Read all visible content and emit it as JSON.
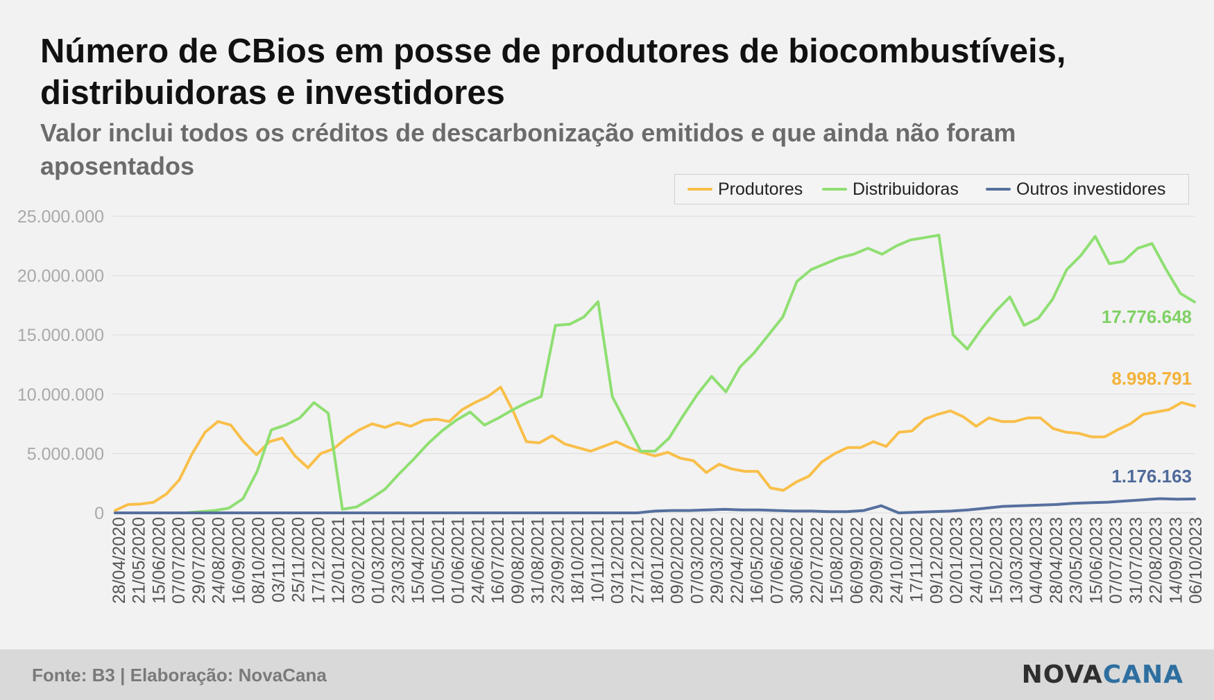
{
  "title": "Número de CBios em posse de produtores de biocombustíveis, distribuidoras e investidores",
  "subtitle": "Valor inclui todos os créditos de descarbonização emitidos e que ainda não foram aposentados",
  "source": "Fonte: B3 | Elaboração: NovaCana",
  "logo": {
    "part1": "NOVA",
    "part2": "CANA"
  },
  "colors": {
    "produtores": "#f9bf4a",
    "distribuidoras": "#8fdf72",
    "outros": "#56709e"
  },
  "chart_data": {
    "type": "line",
    "ylim": [
      0,
      25000000
    ],
    "yticks": [
      "0",
      "5.000.000",
      "10.000.000",
      "15.000.000",
      "20.000.000",
      "25.000.000"
    ],
    "ytick_values": [
      0,
      5000000,
      10000000,
      15000000,
      20000000,
      25000000
    ],
    "xticks": [
      "28/04/2020",
      "21/05/2020",
      "15/06/2020",
      "07/07/2020",
      "29/07/2020",
      "24/08/2020",
      "16/09/2020",
      "08/10/2020",
      "03/11/2020",
      "25/11/2020",
      "17/12/2020",
      "12/01/2021",
      "03/02/2021",
      "01/03/2021",
      "23/03/2021",
      "15/04/2021",
      "10/05/2021",
      "01/06/2021",
      "24/06/2021",
      "16/07/2021",
      "09/08/2021",
      "31/08/2021",
      "23/09/2021",
      "18/10/2021",
      "10/11/2021",
      "03/12/2021",
      "27/12/2021",
      "18/01/2022",
      "09/02/2022",
      "07/03/2022",
      "29/03/2022",
      "22/04/2022",
      "16/05/2022",
      "07/06/2022",
      "30/06/2022",
      "22/07/2022",
      "15/08/2022",
      "06/09/2022",
      "29/09/2022",
      "24/10/2022",
      "17/11/2022",
      "09/12/2022",
      "02/01/2023",
      "24/01/2023",
      "15/02/2023",
      "13/03/2023",
      "04/04/2023",
      "28/04/2023",
      "23/05/2023",
      "15/06/2023",
      "07/07/2023",
      "31/07/2023",
      "22/08/2023",
      "14/09/2023",
      "06/10/2023"
    ],
    "series": [
      {
        "name": "Produtores",
        "key": "produtores",
        "end_label": "8.998.791",
        "values": [
          200000,
          700000,
          750000,
          900000,
          1600000,
          2800000,
          5000000,
          6800000,
          7700000,
          7400000,
          6000000,
          4900000,
          6000000,
          6300000,
          4800000,
          3800000,
          5000000,
          5400000,
          6300000,
          7000000,
          7500000,
          7200000,
          7600000,
          7300000,
          7800000,
          7900000,
          7700000,
          8700000,
          9300000,
          9800000,
          10600000,
          8500000,
          6000000,
          5900000,
          6500000,
          5800000,
          5500000,
          5200000,
          5600000,
          6000000,
          5500000,
          5100000,
          4800000,
          5100000,
          4600000,
          4400000,
          3400000,
          4100000,
          3700000,
          3500000,
          3500000,
          2100000,
          1900000,
          2600000,
          3100000,
          4300000,
          5000000,
          5500000,
          5500000,
          6000000,
          5600000,
          6800000,
          6900000,
          7900000,
          8300000,
          8600000,
          8100000,
          7300000,
          8000000,
          7700000,
          7700000,
          8000000,
          8000000,
          7100000,
          6800000,
          6700000,
          6400000,
          6400000,
          7000000,
          7500000,
          8300000,
          8500000,
          8700000,
          9300000,
          8998791
        ]
      },
      {
        "name": "Distribuidoras",
        "key": "distribuidoras",
        "end_label": "17.776.648",
        "values": [
          0,
          0,
          0,
          0,
          0,
          0,
          100000,
          200000,
          400000,
          1200000,
          3500000,
          7000000,
          7400000,
          8000000,
          9300000,
          8400000,
          300000,
          500000,
          1200000,
          2000000,
          3300000,
          4500000,
          5800000,
          6900000,
          7800000,
          8500000,
          7400000,
          8000000,
          8700000,
          9300000,
          9800000,
          15800000,
          15900000,
          16500000,
          17800000,
          9800000,
          7500000,
          5200000,
          5200000,
          6300000,
          8200000,
          10000000,
          11500000,
          10200000,
          12300000,
          13500000,
          15000000,
          16500000,
          19500000,
          20500000,
          21000000,
          21500000,
          21800000,
          22300000,
          21800000,
          22500000,
          23000000,
          23200000,
          23400000,
          15000000,
          13800000,
          15500000,
          17000000,
          18200000,
          15800000,
          16400000,
          18000000,
          20500000,
          21700000,
          23300000,
          21000000,
          21200000,
          22300000,
          22700000,
          20500000,
          18500000,
          17776648
        ]
      },
      {
        "name": "Outros investidores",
        "key": "outros",
        "end_label": "1.176.163",
        "values": [
          0,
          0,
          0,
          0,
          0,
          0,
          0,
          0,
          0,
          0,
          0,
          0,
          0,
          0,
          0,
          0,
          0,
          0,
          0,
          0,
          0,
          0,
          0,
          0,
          0,
          0,
          0,
          0,
          0,
          0,
          0,
          150000,
          200000,
          200000,
          250000,
          300000,
          250000,
          250000,
          200000,
          150000,
          150000,
          100000,
          100000,
          200000,
          600000,
          0,
          50000,
          100000,
          150000,
          250000,
          400000,
          550000,
          600000,
          650000,
          700000,
          800000,
          850000,
          900000,
          1000000,
          1100000,
          1200000,
          1150000,
          1176163
        ]
      }
    ]
  }
}
